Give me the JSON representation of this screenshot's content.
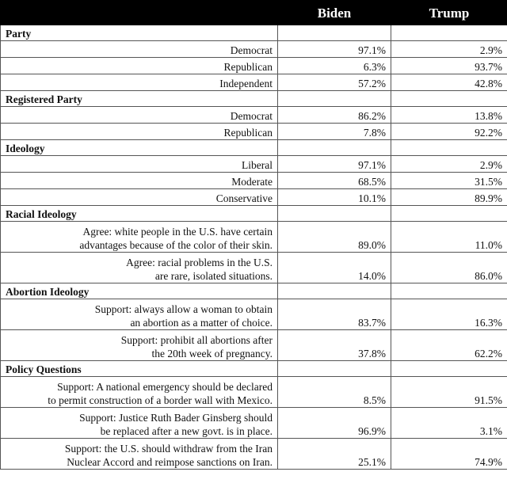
{
  "header": {
    "columns": [
      "Biden",
      "Trump"
    ]
  },
  "sections": [
    {
      "title": "Party",
      "rows": [
        {
          "label": [
            "Democrat"
          ],
          "values": [
            "97.1%",
            "2.9%"
          ]
        },
        {
          "label": [
            "Republican"
          ],
          "values": [
            "6.3%",
            "93.7%"
          ]
        },
        {
          "label": [
            "Independent"
          ],
          "values": [
            "57.2%",
            "42.8%"
          ]
        }
      ]
    },
    {
      "title": "Registered Party",
      "rows": [
        {
          "label": [
            "Democrat"
          ],
          "values": [
            "86.2%",
            "13.8%"
          ]
        },
        {
          "label": [
            "Republican"
          ],
          "values": [
            "7.8%",
            "92.2%"
          ]
        }
      ]
    },
    {
      "title": "Ideology",
      "rows": [
        {
          "label": [
            "Liberal"
          ],
          "values": [
            "97.1%",
            "2.9%"
          ]
        },
        {
          "label": [
            "Moderate"
          ],
          "values": [
            "68.5%",
            "31.5%"
          ]
        },
        {
          "label": [
            "Conservative"
          ],
          "values": [
            "10.1%",
            "89.9%"
          ]
        }
      ]
    },
    {
      "title": "Racial Ideology",
      "rows": [
        {
          "label": [
            "Agree: white people in the U.S. have certain",
            "advantages because of the color of their skin."
          ],
          "values": [
            "89.0%",
            "11.0%"
          ]
        },
        {
          "label": [
            "Agree: racial problems in the U.S.",
            "are rare, isolated situations."
          ],
          "values": [
            "14.0%",
            "86.0%"
          ]
        }
      ]
    },
    {
      "title": "Abortion Ideology",
      "rows": [
        {
          "label": [
            "Support: always allow a woman to obtain",
            "an abortion as a matter of choice."
          ],
          "values": [
            "83.7%",
            "16.3%"
          ]
        },
        {
          "label": [
            "Support: prohibit all abortions after",
            "the 20th week of pregnancy."
          ],
          "values": [
            "37.8%",
            "62.2%"
          ]
        }
      ]
    },
    {
      "title": "Policy Questions",
      "rows": [
        {
          "label": [
            "Support: A national emergency should be declared",
            "to permit construction of a border wall with Mexico."
          ],
          "values": [
            "8.5%",
            "91.5%"
          ]
        },
        {
          "label": [
            "Support: Justice Ruth Bader Ginsberg should",
            "be replaced after a new govt. is in place."
          ],
          "values": [
            "96.9%",
            "3.1%"
          ]
        },
        {
          "label": [
            "Support: the U.S. should withdraw from the Iran",
            "Nuclear Accord and reimpose sanctions on Iran."
          ],
          "values": [
            "25.1%",
            "74.9%"
          ]
        }
      ]
    }
  ]
}
